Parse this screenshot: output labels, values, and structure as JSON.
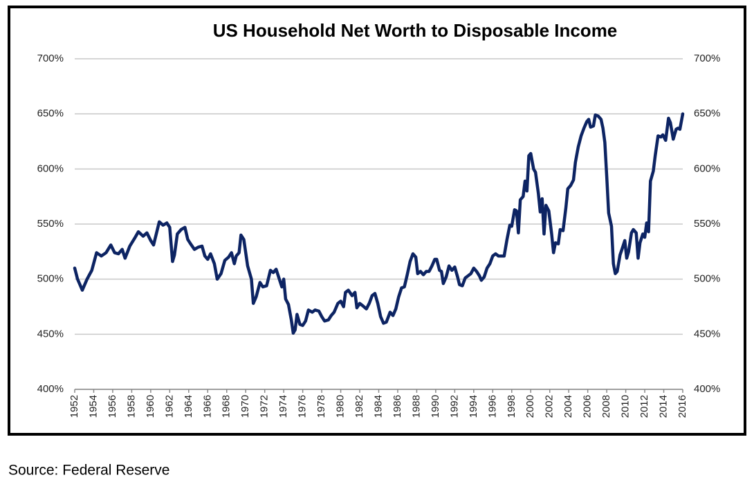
{
  "chart_data": {
    "type": "line",
    "title": "US Household Net Worth to Disposable Income",
    "source": "Source: Federal Reserve",
    "x": [
      1952.0,
      1952.3,
      1952.8,
      1953.3,
      1953.8,
      1954.3,
      1954.8,
      1955.3,
      1955.8,
      1956.2,
      1956.6,
      1957.0,
      1957.3,
      1957.8,
      1958.3,
      1958.7,
      1959.2,
      1959.6,
      1960.0,
      1960.3,
      1960.7,
      1960.9,
      1961.3,
      1961.7,
      1962.0,
      1962.3,
      1962.5,
      1962.8,
      1963.2,
      1963.6,
      1963.9,
      1964.2,
      1964.6,
      1965.0,
      1965.4,
      1965.7,
      1966.0,
      1966.3,
      1966.7,
      1967.0,
      1967.4,
      1967.8,
      1968.2,
      1968.5,
      1968.8,
      1969.0,
      1969.3,
      1969.5,
      1969.8,
      1970.2,
      1970.6,
      1970.8,
      1971.1,
      1971.5,
      1971.8,
      1972.2,
      1972.6,
      1972.9,
      1973.2,
      1973.5,
      1973.8,
      1974.0,
      1974.2,
      1974.5,
      1974.8,
      1975.0,
      1975.2,
      1975.4,
      1975.7,
      1976.0,
      1976.3,
      1976.6,
      1977.0,
      1977.3,
      1977.7,
      1978.0,
      1978.3,
      1978.7,
      1979.0,
      1979.3,
      1979.7,
      1980.0,
      1980.3,
      1980.5,
      1980.8,
      1981.2,
      1981.5,
      1981.7,
      1982.0,
      1982.3,
      1982.7,
      1983.0,
      1983.3,
      1983.6,
      1983.9,
      1984.2,
      1984.5,
      1984.8,
      1985.2,
      1985.5,
      1985.8,
      1986.1,
      1986.4,
      1986.7,
      1987.0,
      1987.3,
      1987.6,
      1987.9,
      1988.1,
      1988.4,
      1988.7,
      1989.0,
      1989.3,
      1989.6,
      1989.9,
      1990.1,
      1990.4,
      1990.6,
      1990.8,
      1991.1,
      1991.4,
      1991.7,
      1992.0,
      1992.3,
      1992.5,
      1992.8,
      1993.1,
      1993.4,
      1993.7,
      1994.0,
      1994.3,
      1994.6,
      1994.8,
      1995.1,
      1995.4,
      1995.7,
      1996.0,
      1996.3,
      1996.6,
      1996.9,
      1997.2,
      1997.5,
      1997.8,
      1998.0,
      1998.3,
      1998.5,
      1998.7,
      1998.9,
      1999.2,
      1999.4,
      1999.6,
      1999.8,
      2000.0,
      2000.3,
      2000.5,
      2000.8,
      2001.0,
      2001.2,
      2001.4,
      2001.6,
      2001.9,
      2002.2,
      2002.4,
      2002.6,
      2002.9,
      2003.1,
      2003.4,
      2003.7,
      2003.9,
      2004.2,
      2004.5,
      2004.7,
      2005.0,
      2005.3,
      2005.6,
      2005.9,
      2006.1,
      2006.3,
      2006.6,
      2006.8,
      2007.1,
      2007.4,
      2007.6,
      2007.8,
      2008.0,
      2008.2,
      2008.5,
      2008.7,
      2008.9,
      2009.1,
      2009.4,
      2009.6,
      2009.9,
      2010.1,
      2010.3,
      2010.6,
      2010.8,
      2011.1,
      2011.3,
      2011.5,
      2011.8,
      2012.0,
      2012.2,
      2012.4,
      2012.6,
      2012.9,
      2013.1,
      2013.4,
      2013.7,
      2013.9,
      2014.2,
      2014.5,
      2014.7,
      2015.0,
      2015.3,
      2015.5,
      2015.7,
      2015.85,
      2016.0
    ],
    "series": [
      {
        "name": "Net Worth to Disposable Income",
        "color": "#0d2463",
        "values": [
          510,
          500,
          490,
          500,
          508,
          524,
          521,
          524,
          531,
          524,
          523,
          527,
          519,
          530,
          537,
          543,
          539,
          542,
          535,
          531,
          545,
          552,
          549,
          551,
          547,
          516,
          522,
          541,
          545,
          547,
          536,
          532,
          527,
          529,
          530,
          521,
          518,
          523,
          514,
          500,
          505,
          517,
          520,
          524,
          514,
          521,
          524,
          540,
          536,
          512,
          500,
          478,
          484,
          497,
          493,
          494,
          508,
          506,
          509,
          501,
          493,
          500,
          482,
          477,
          463,
          451,
          454,
          468,
          459,
          458,
          462,
          472,
          470,
          472,
          471,
          466,
          462,
          463,
          467,
          470,
          478,
          480,
          475,
          488,
          490,
          485,
          488,
          474,
          478,
          476,
          473,
          478,
          485,
          487,
          478,
          466,
          460,
          461,
          470,
          467,
          473,
          484,
          492,
          493,
          504,
          516,
          523,
          520,
          505,
          507,
          504,
          507,
          507,
          512,
          518,
          518,
          508,
          507,
          496,
          502,
          512,
          508,
          511,
          502,
          495,
          494,
          501,
          503,
          505,
          510,
          507,
          503,
          499,
          502,
          510,
          514,
          521,
          523,
          521,
          521,
          521,
          536,
          549,
          548,
          563,
          562,
          542,
          572,
          575,
          589,
          580,
          612,
          614,
          600,
          597,
          578,
          561,
          573,
          541,
          567,
          562,
          541,
          524,
          533,
          532,
          545,
          544,
          565,
          582,
          585,
          590,
          606,
          620,
          630,
          637,
          643,
          645,
          638,
          639,
          649,
          648,
          645,
          637,
          624,
          593,
          560,
          548,
          514,
          505,
          507,
          522,
          527,
          535,
          519,
          525,
          542,
          545,
          542,
          519,
          533,
          541,
          538,
          551,
          543,
          589,
          598,
          612,
          630,
          629,
          631,
          626,
          646,
          642,
          627,
          636,
          637,
          636,
          643,
          650
        ]
      }
    ],
    "xlim": [
      1952,
      2016
    ],
    "xticks": [
      1952,
      1954,
      1956,
      1958,
      1960,
      1962,
      1964,
      1966,
      1968,
      1970,
      1972,
      1974,
      1976,
      1978,
      1980,
      1982,
      1984,
      1986,
      1988,
      1990,
      1992,
      1994,
      1996,
      1998,
      2000,
      2002,
      2004,
      2006,
      2008,
      2010,
      2012,
      2014,
      2016
    ],
    "ylim": [
      400,
      700
    ],
    "yticks": [
      {
        "value": 400,
        "label": "400%"
      },
      {
        "value": 450,
        "label": "450%"
      },
      {
        "value": 500,
        "label": "500%"
      },
      {
        "value": 550,
        "label": "550%"
      },
      {
        "value": 600,
        "label": "600%"
      },
      {
        "value": 650,
        "label": "650%"
      },
      {
        "value": 700,
        "label": "700%"
      }
    ],
    "y2lim": [
      400,
      700
    ],
    "y2ticks": [
      {
        "value": 400,
        "label": "400%"
      },
      {
        "value": 450,
        "label": "450%"
      },
      {
        "value": 500,
        "label": "500%"
      },
      {
        "value": 550,
        "label": "550%"
      },
      {
        "value": 600,
        "label": "600%"
      },
      {
        "value": 650,
        "label": "650%"
      },
      {
        "value": 700,
        "label": "700%"
      }
    ],
    "grid": true
  }
}
